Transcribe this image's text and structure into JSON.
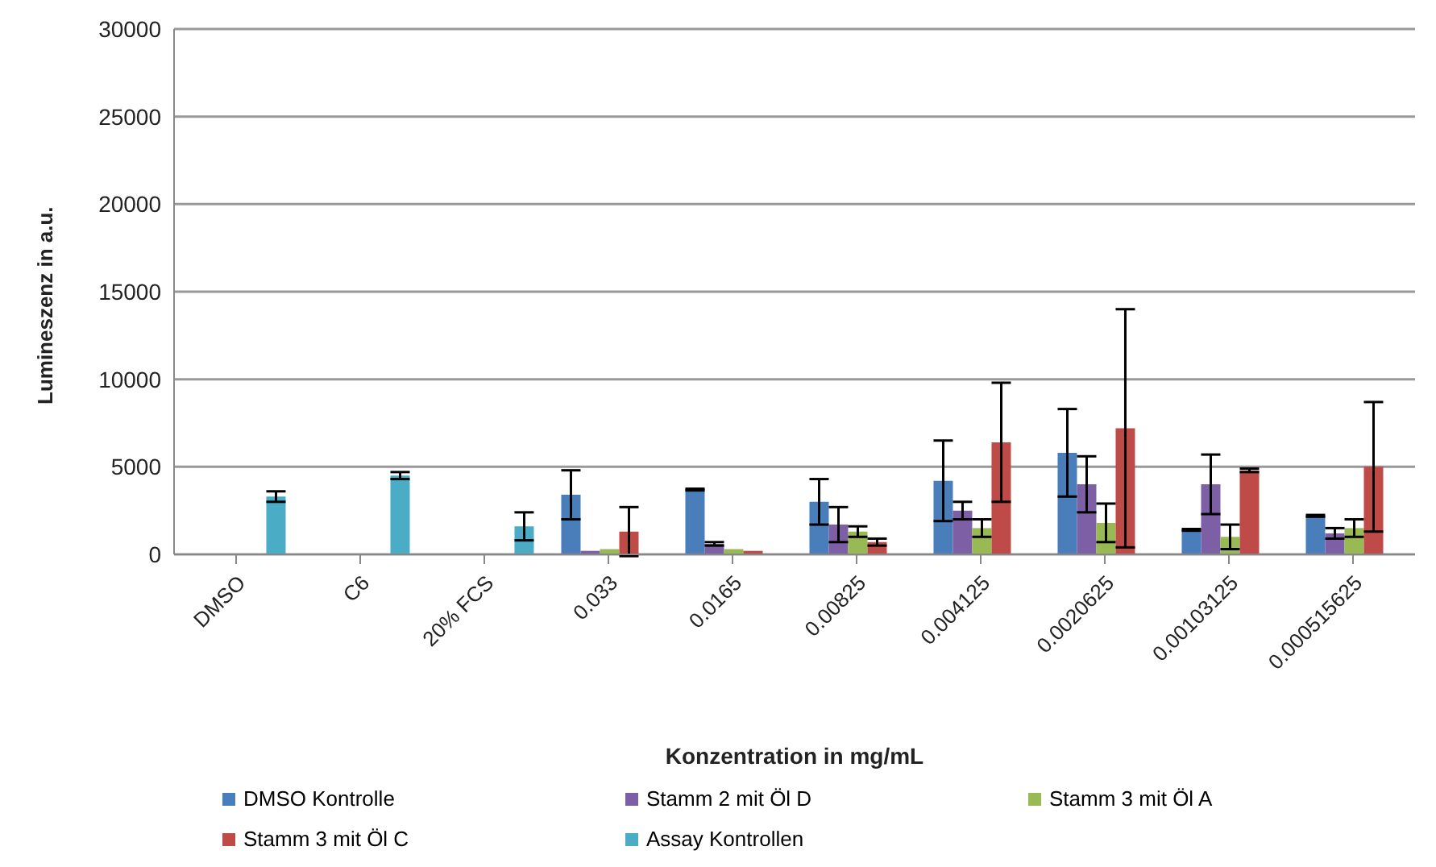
{
  "chart_data": {
    "type": "bar",
    "xlabel": "Konzentration in mg/mL",
    "ylabel": "Lumineszenz in a.u.",
    "categories": [
      "DMSO",
      "C6",
      "20% FCS",
      "0.033",
      "0.0165",
      "0.00825",
      "0.004125",
      "0.0020625",
      "0.00103125",
      "0.000515625"
    ],
    "series": [
      {
        "name": "DMSO Kontrolle",
        "color": "#4a7ebb",
        "values": [
          null,
          null,
          null,
          3400,
          3700,
          3000,
          4200,
          5800,
          1400,
          2200
        ],
        "errors": [
          null,
          null,
          null,
          1400,
          50,
          1300,
          2300,
          2500,
          50,
          50
        ]
      },
      {
        "name": "Stamm 2 mit Öl D",
        "color": "#7d5fa6",
        "values": [
          null,
          null,
          null,
          200,
          600,
          1700,
          2500,
          4000,
          4000,
          1200
        ],
        "errors": [
          null,
          null,
          null,
          null,
          100,
          1000,
          500,
          1600,
          1700,
          300
        ]
      },
      {
        "name": "Stamm 3 mit Öl A",
        "color": "#98b954",
        "values": [
          null,
          null,
          null,
          300,
          300,
          1300,
          1500,
          1800,
          1000,
          1500
        ],
        "errors": [
          null,
          null,
          null,
          null,
          null,
          300,
          500,
          1100,
          700,
          500
        ]
      },
      {
        "name": "Stamm 3 mit Öl C",
        "color": "#be4b48",
        "values": [
          null,
          null,
          null,
          1300,
          200,
          700,
          6400,
          7200,
          4800,
          5000
        ],
        "errors": [
          null,
          null,
          null,
          1400,
          null,
          200,
          3400,
          6800,
          100,
          3700
        ]
      },
      {
        "name": "Assay Kontrollen",
        "color": "#4bacc6",
        "values": [
          3300,
          4500,
          1600,
          null,
          null,
          null,
          null,
          null,
          null,
          null
        ],
        "errors": [
          300,
          200,
          800,
          null,
          null,
          null,
          null,
          null,
          null,
          null
        ]
      }
    ],
    "ylim": [
      0,
      30000
    ],
    "yticks": [
      0,
      5000,
      10000,
      15000,
      20000,
      25000,
      30000
    ],
    "grid": "y",
    "legend": "bottom"
  }
}
